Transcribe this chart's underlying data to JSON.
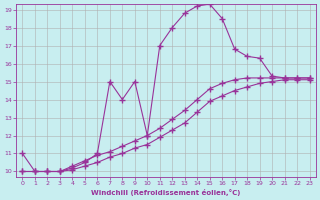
{
  "xlabel": "Windchill (Refroidissement éolien,°C)",
  "bg_color": "#c8eef0",
  "grid_color": "#b0b0b0",
  "line_color": "#993399",
  "line1_x": [
    0,
    1,
    2,
    3,
    4,
    5,
    6,
    7,
    8,
    9,
    10,
    11,
    12,
    13,
    14,
    15,
    16,
    17,
    18,
    19,
    20,
    21,
    22,
    23
  ],
  "line1_y": [
    11.0,
    10.0,
    10.0,
    10.0,
    10.2,
    10.5,
    11.0,
    15.0,
    14.0,
    15.0,
    12.0,
    17.0,
    18.0,
    18.8,
    19.2,
    19.3,
    18.5,
    16.8,
    16.4,
    16.3,
    15.3,
    15.2,
    15.2,
    15.2
  ],
  "line2_x": [
    0,
    1,
    2,
    3,
    4,
    5,
    6,
    7,
    8,
    9,
    10,
    11,
    12,
    13,
    14,
    15,
    16,
    17,
    18,
    19,
    20,
    21,
    22,
    23
  ],
  "line2_y": [
    10.0,
    10.0,
    10.0,
    10.0,
    10.3,
    10.6,
    10.9,
    11.1,
    11.4,
    11.7,
    12.0,
    12.4,
    12.9,
    13.4,
    14.0,
    14.6,
    14.9,
    15.1,
    15.2,
    15.2,
    15.2,
    15.2,
    15.2,
    15.2
  ],
  "line3_x": [
    0,
    1,
    2,
    3,
    4,
    5,
    6,
    7,
    8,
    9,
    10,
    11,
    12,
    13,
    14,
    15,
    16,
    17,
    18,
    19,
    20,
    21,
    22,
    23
  ],
  "line3_y": [
    10.0,
    10.0,
    10.0,
    10.0,
    10.1,
    10.3,
    10.5,
    10.8,
    11.0,
    11.3,
    11.5,
    11.9,
    12.3,
    12.7,
    13.3,
    13.9,
    14.2,
    14.5,
    14.7,
    14.9,
    15.0,
    15.1,
    15.1,
    15.1
  ],
  "xlim": [
    -0.5,
    23.5
  ],
  "ylim": [
    9.7,
    19.3
  ],
  "yticks": [
    10,
    11,
    12,
    13,
    14,
    15,
    16,
    17,
    18,
    19
  ],
  "xticks": [
    0,
    1,
    2,
    3,
    4,
    5,
    6,
    7,
    8,
    9,
    10,
    11,
    12,
    13,
    14,
    15,
    16,
    17,
    18,
    19,
    20,
    21,
    22,
    23
  ],
  "marker": "+",
  "markersize": 4,
  "linewidth": 0.8
}
